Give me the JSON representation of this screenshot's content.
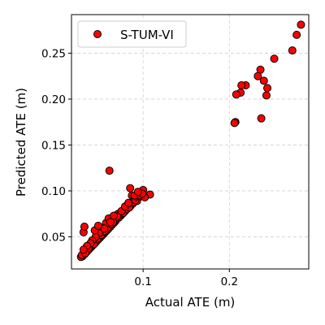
{
  "chart_data": {
    "type": "scatter",
    "title": "",
    "xlabel": "Actual ATE (m)",
    "ylabel": "Predicted ATE (m)",
    "xlim": [
      0.017,
      0.292
    ],
    "ylim": [
      0.015,
      0.292
    ],
    "xticks": [
      0.1,
      0.2
    ],
    "xtick_labels": [
      "0.1",
      "0.2"
    ],
    "yticks": [
      0.05,
      0.1,
      0.15,
      0.2,
      0.25
    ],
    "ytick_labels": [
      "0.05",
      "0.10",
      "0.15",
      "0.20",
      "0.25"
    ],
    "grid": true,
    "legend_position": "top-left",
    "series": [
      {
        "name": "S-TUM-VI",
        "color": "#ff0000",
        "edgecolor": "#000000",
        "points": [
          [
            0.283,
            0.281
          ],
          [
            0.278,
            0.27
          ],
          [
            0.273,
            0.253
          ],
          [
            0.252,
            0.244
          ],
          [
            0.236,
            0.232
          ],
          [
            0.233,
            0.225
          ],
          [
            0.24,
            0.22
          ],
          [
            0.244,
            0.212
          ],
          [
            0.243,
            0.204
          ],
          [
            0.219,
            0.215
          ],
          [
            0.214,
            0.215
          ],
          [
            0.213,
            0.207
          ],
          [
            0.208,
            0.205
          ],
          [
            0.207,
            0.175
          ],
          [
            0.206,
            0.174
          ],
          [
            0.237,
            0.179
          ],
          [
            0.061,
            0.122
          ],
          [
            0.1,
            0.101
          ],
          [
            0.098,
            0.097
          ],
          [
            0.095,
            0.093
          ],
          [
            0.108,
            0.096
          ],
          [
            0.102,
            0.093
          ],
          [
            0.085,
            0.103
          ],
          [
            0.087,
            0.095
          ],
          [
            0.09,
            0.091
          ],
          [
            0.093,
            0.089
          ],
          [
            0.088,
            0.086
          ],
          [
            0.085,
            0.083
          ],
          [
            0.082,
            0.081
          ],
          [
            0.08,
            0.079
          ],
          [
            0.078,
            0.077
          ],
          [
            0.076,
            0.075
          ],
          [
            0.074,
            0.073
          ],
          [
            0.072,
            0.071
          ],
          [
            0.071,
            0.075
          ],
          [
            0.068,
            0.067
          ],
          [
            0.066,
            0.065
          ],
          [
            0.064,
            0.063
          ],
          [
            0.062,
            0.061
          ],
          [
            0.06,
            0.059
          ],
          [
            0.058,
            0.057
          ],
          [
            0.056,
            0.055
          ],
          [
            0.054,
            0.053
          ],
          [
            0.052,
            0.051
          ],
          [
            0.05,
            0.049
          ],
          [
            0.048,
            0.047
          ],
          [
            0.046,
            0.045
          ],
          [
            0.044,
            0.043
          ],
          [
            0.042,
            0.041
          ],
          [
            0.04,
            0.039
          ],
          [
            0.038,
            0.037
          ],
          [
            0.036,
            0.035
          ],
          [
            0.034,
            0.033
          ],
          [
            0.032,
            0.031
          ],
          [
            0.03,
            0.029
          ],
          [
            0.028,
            0.028
          ],
          [
            0.029,
            0.03
          ],
          [
            0.033,
            0.032
          ],
          [
            0.037,
            0.038
          ],
          [
            0.043,
            0.042
          ],
          [
            0.047,
            0.048
          ],
          [
            0.051,
            0.052
          ],
          [
            0.055,
            0.056
          ],
          [
            0.059,
            0.06
          ],
          [
            0.063,
            0.064
          ],
          [
            0.067,
            0.068
          ],
          [
            0.069,
            0.07
          ],
          [
            0.073,
            0.074
          ],
          [
            0.077,
            0.076
          ],
          [
            0.081,
            0.08
          ],
          [
            0.084,
            0.082
          ],
          [
            0.086,
            0.087
          ],
          [
            0.089,
            0.088
          ],
          [
            0.091,
            0.09
          ],
          [
            0.092,
            0.094
          ],
          [
            0.096,
            0.095
          ],
          [
            0.099,
            0.097
          ],
          [
            0.075,
            0.078
          ],
          [
            0.07,
            0.072
          ],
          [
            0.065,
            0.066
          ],
          [
            0.057,
            0.065
          ],
          [
            0.053,
            0.059
          ],
          [
            0.049,
            0.054
          ],
          [
            0.045,
            0.05
          ],
          [
            0.041,
            0.046
          ],
          [
            0.039,
            0.043
          ],
          [
            0.035,
            0.04
          ],
          [
            0.031,
            0.036
          ],
          [
            0.031,
            0.055
          ],
          [
            0.032,
            0.061
          ],
          [
            0.044,
            0.057
          ],
          [
            0.055,
            0.059
          ],
          [
            0.048,
            0.062
          ],
          [
            0.06,
            0.07
          ],
          [
            0.062,
            0.066
          ],
          [
            0.066,
            0.073
          ],
          [
            0.079,
            0.083
          ],
          [
            0.083,
            0.087
          ],
          [
            0.09,
            0.095
          ],
          [
            0.094,
            0.099
          ]
        ]
      }
    ]
  }
}
